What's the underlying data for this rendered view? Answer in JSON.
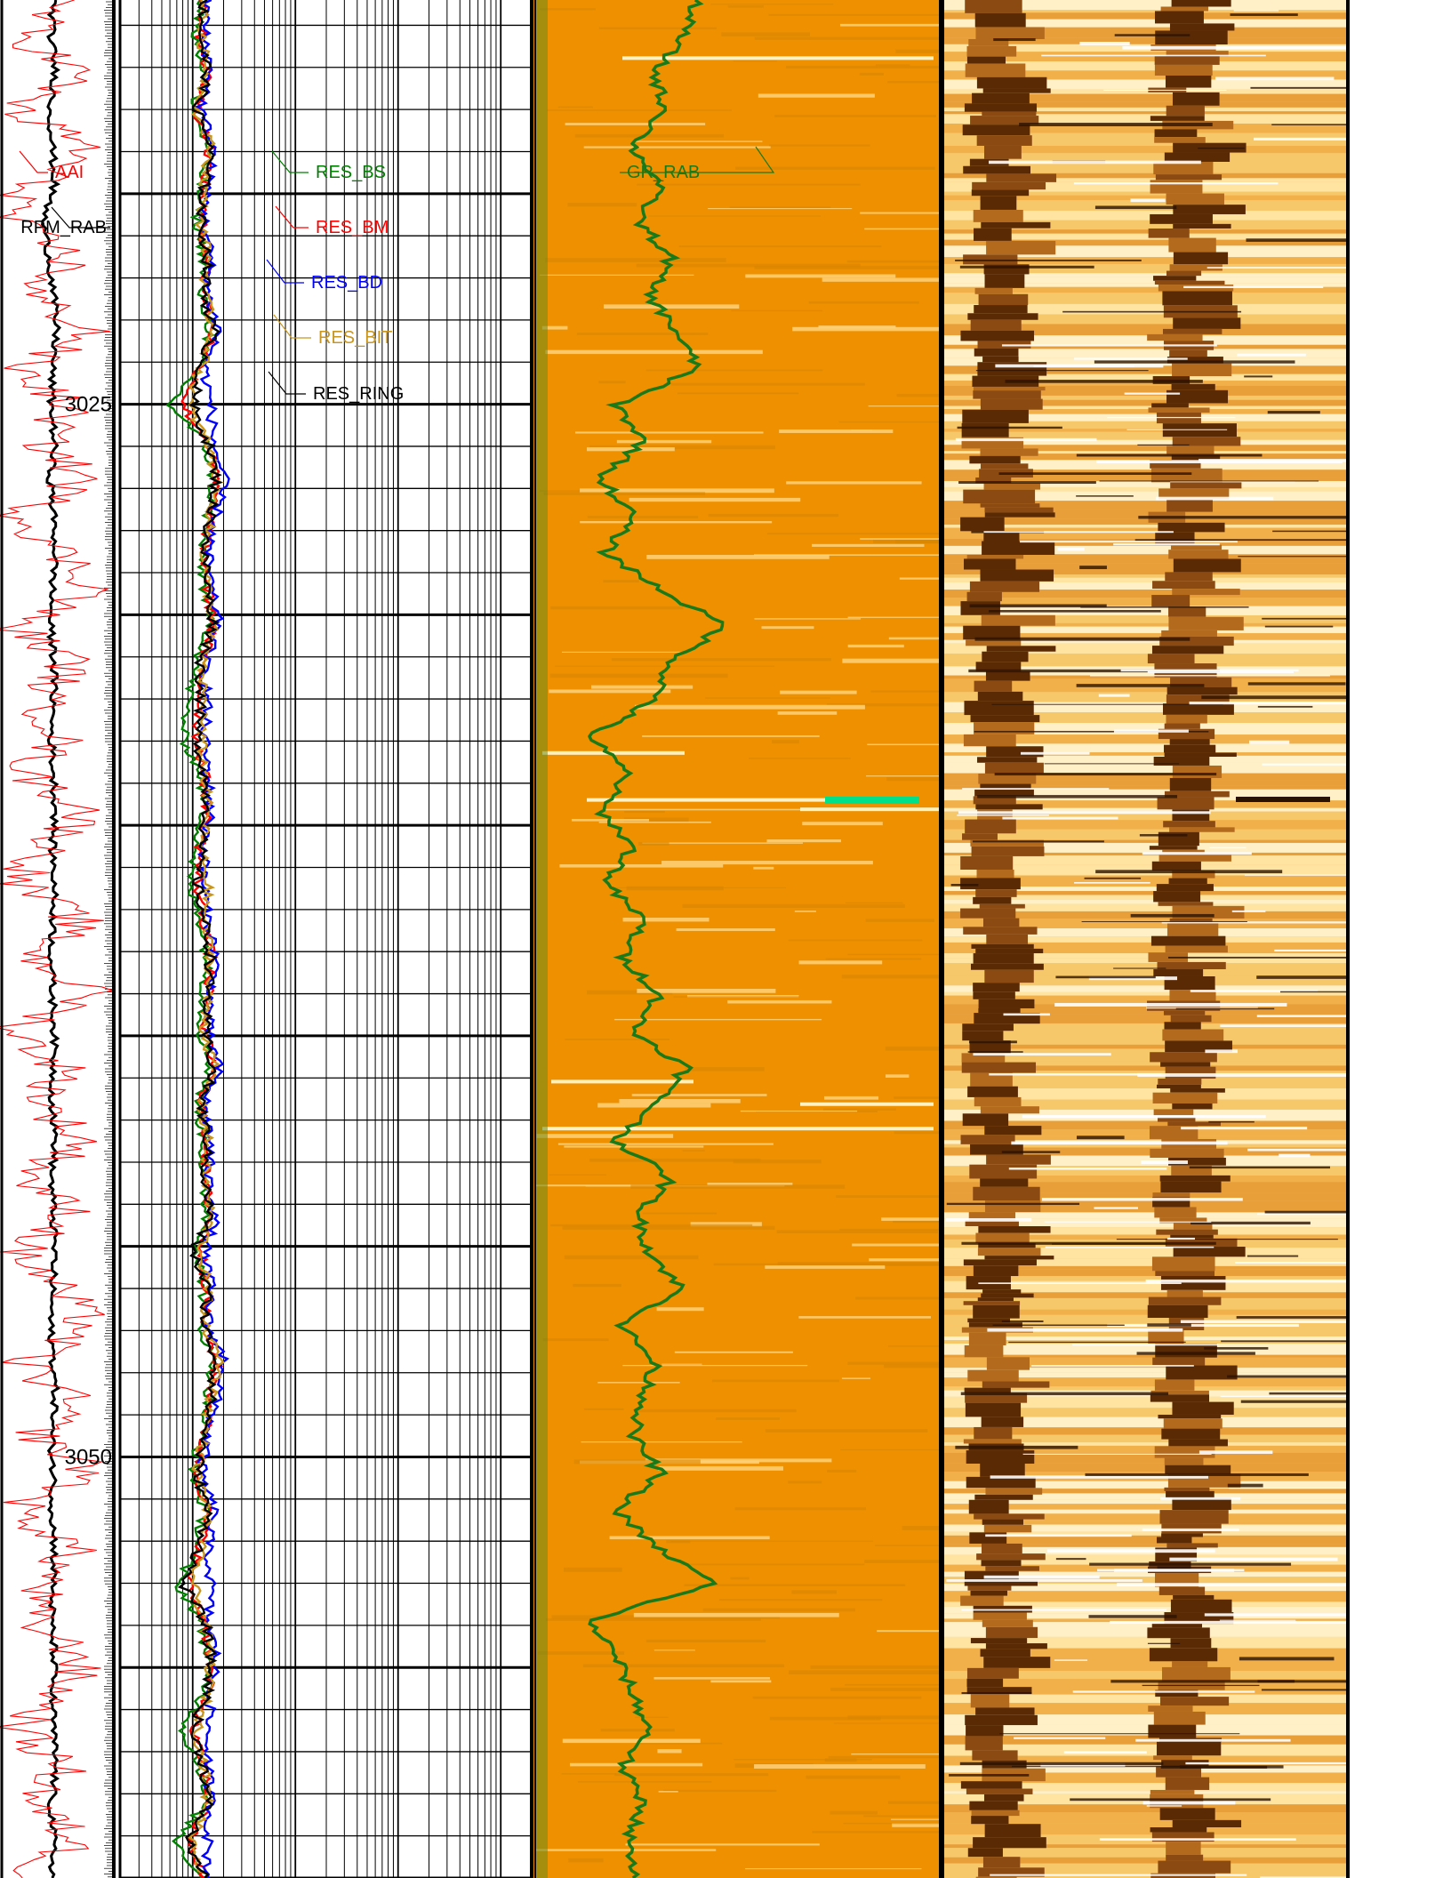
{
  "chart_data": {
    "type": "line",
    "depth_axis": {
      "unit": "m",
      "range": [
        3015.4,
        3060.0
      ],
      "labeled_ticks": [
        3025,
        3050
      ]
    },
    "tracks": [
      {
        "id": "track1",
        "series": [
          {
            "name": "RPM_RAB",
            "color": "#000000",
            "values": [
              50,
              48,
              52,
              47,
              49,
              51,
              40,
              46,
              50,
              53,
              49,
              48,
              51,
              47,
              50,
              52,
              49,
              47,
              51,
              50,
              48,
              50,
              52,
              49,
              51,
              50,
              48,
              49,
              51,
              50,
              49,
              52,
              48,
              50,
              51,
              49,
              47,
              50,
              52,
              48,
              50,
              49,
              51,
              50,
              48,
              51,
              49,
              50,
              52,
              48,
              50,
              49
            ]
          },
          {
            "name": "AAI",
            "color": "#ff0000",
            "values": [
              60,
              20,
              75,
              10,
              85,
              30,
              5,
              70,
              25,
              90,
              15,
              65,
              40,
              80,
              20,
              55,
              95,
              10,
              70,
              35,
              60,
              20,
              85,
              45,
              15,
              75,
              30,
              90,
              10,
              60,
              40,
              80,
              25,
              70,
              15,
              55,
              85,
              20,
              65,
              35,
              90,
              10,
              70,
              40,
              25,
              80,
              55,
              15,
              60,
              30,
              75,
              20
            ]
          }
        ]
      },
      {
        "id": "track2",
        "scale": "log",
        "xlim": [
          0.2,
          2000
        ],
        "series": [
          {
            "name": "RES_BS",
            "color": "#007f00",
            "values": [
              1.2,
              1.1,
              1.3,
              1.0,
              1.4,
              1.2,
              1.1,
              1.3,
              1.2,
              1.5,
              1.1,
              0.6,
              1.3,
              1.6,
              1.4,
              1.2,
              1.3,
              1.5,
              1.1,
              0.9,
              0.8,
              1.2,
              1.3,
              1.1,
              0.9,
              1.2,
              1.4,
              1.3,
              1.2,
              1.5,
              1.1,
              1.3,
              1.2,
              1.4,
              1.1,
              1.3,
              1.2,
              1.6,
              1.4,
              1.2,
              1.0,
              1.3,
              1.1,
              0.7,
              1.2,
              1.4,
              1.3,
              0.8,
              1.2,
              1.3,
              0.7,
              1.2
            ]
          },
          {
            "name": "RES_BM",
            "color": "#ff0000",
            "values": [
              1.3,
              1.2,
              1.4,
              1.1,
              1.5,
              1.3,
              1.2,
              1.4,
              1.3,
              1.6,
              1.2,
              0.8,
              1.4,
              1.7,
              1.5,
              1.3,
              1.4,
              1.6,
              1.2,
              1.2,
              1.1,
              1.3,
              1.4,
              1.2,
              1.1,
              1.3,
              1.5,
              1.4,
              1.3,
              1.6,
              1.2,
              1.4,
              1.3,
              1.5,
              1.2,
              1.4,
              1.3,
              1.7,
              1.5,
              1.3,
              1.1,
              1.4,
              1.2,
              0.9,
              1.3,
              1.5,
              1.4,
              1.0,
              1.3,
              1.4,
              0.9,
              1.3
            ]
          },
          {
            "name": "RES_BD",
            "color": "#0000ff",
            "values": [
              1.4,
              1.3,
              1.5,
              1.2,
              1.6,
              1.4,
              1.3,
              1.5,
              1.4,
              1.8,
              1.3,
              1.5,
              1.6,
              2.0,
              1.7,
              1.4,
              1.5,
              1.8,
              1.3,
              1.4,
              1.3,
              1.4,
              1.5,
              1.3,
              1.3,
              1.4,
              1.7,
              1.5,
              1.4,
              1.8,
              1.3,
              1.5,
              1.4,
              1.7,
              1.3,
              1.5,
              1.4,
              2.1,
              1.7,
              1.4,
              1.2,
              1.6,
              1.4,
              1.5,
              1.4,
              1.7,
              1.5,
              1.4,
              1.4,
              1.5,
              1.4,
              1.4
            ]
          },
          {
            "name": "RES_BIT",
            "color": "#c8961e",
            "values": [
              1.3,
              1.2,
              1.4,
              1.1,
              1.5,
              1.3,
              1.2,
              1.4,
              1.3,
              1.6,
              1.2,
              0.9,
              1.4,
              1.7,
              1.5,
              1.3,
              1.4,
              1.6,
              1.2,
              1.3,
              1.2,
              1.3,
              1.4,
              1.2,
              1.4,
              1.3,
              1.5,
              1.4,
              1.3,
              1.6,
              1.2,
              1.4,
              1.3,
              1.5,
              1.2,
              1.4,
              1.3,
              1.9,
              1.5,
              1.3,
              1.1,
              1.4,
              1.2,
              1.0,
              1.3,
              1.5,
              1.4,
              1.1,
              1.3,
              1.4,
              1.0,
              1.3
            ]
          },
          {
            "name": "RES_RING",
            "color": "#000000",
            "values": [
              1.3,
              1.2,
              1.4,
              1.1,
              1.5,
              1.3,
              1.2,
              1.4,
              1.3,
              1.6,
              1.2,
              1.0,
              1.4,
              1.7,
              1.5,
              1.3,
              1.4,
              1.6,
              1.2,
              1.2,
              1.1,
              1.3,
              1.4,
              1.2,
              1.1,
              1.3,
              1.5,
              1.4,
              1.3,
              1.6,
              1.2,
              1.4,
              1.3,
              1.5,
              1.0,
              1.4,
              1.3,
              1.7,
              1.5,
              1.3,
              1.1,
              1.4,
              1.2,
              0.8,
              1.3,
              1.5,
              1.4,
              1.0,
              1.3,
              1.4,
              0.9,
              1.3
            ]
          }
        ]
      },
      {
        "id": "track3",
        "image_color": "#ee9000",
        "series": [
          {
            "name": "GR_RAB",
            "color": "#1a7a1a",
            "values": [
              60,
              57,
              52,
              54,
              48,
              53,
              49,
              55,
              51,
              56,
              60,
              45,
              50,
              42,
              48,
              43,
              53,
              65,
              55,
              52,
              40,
              47,
              42,
              48,
              43,
              50,
              46,
              53,
              48,
              58,
              52,
              45,
              55,
              49,
              51,
              57,
              46,
              52,
              50,
              48,
              53,
              45,
              52,
              63,
              40,
              45,
              48,
              51,
              46,
              50,
              47,
              48
            ]
          }
        ]
      },
      {
        "id": "track4",
        "image": "dark-light banded image"
      }
    ]
  }
}
